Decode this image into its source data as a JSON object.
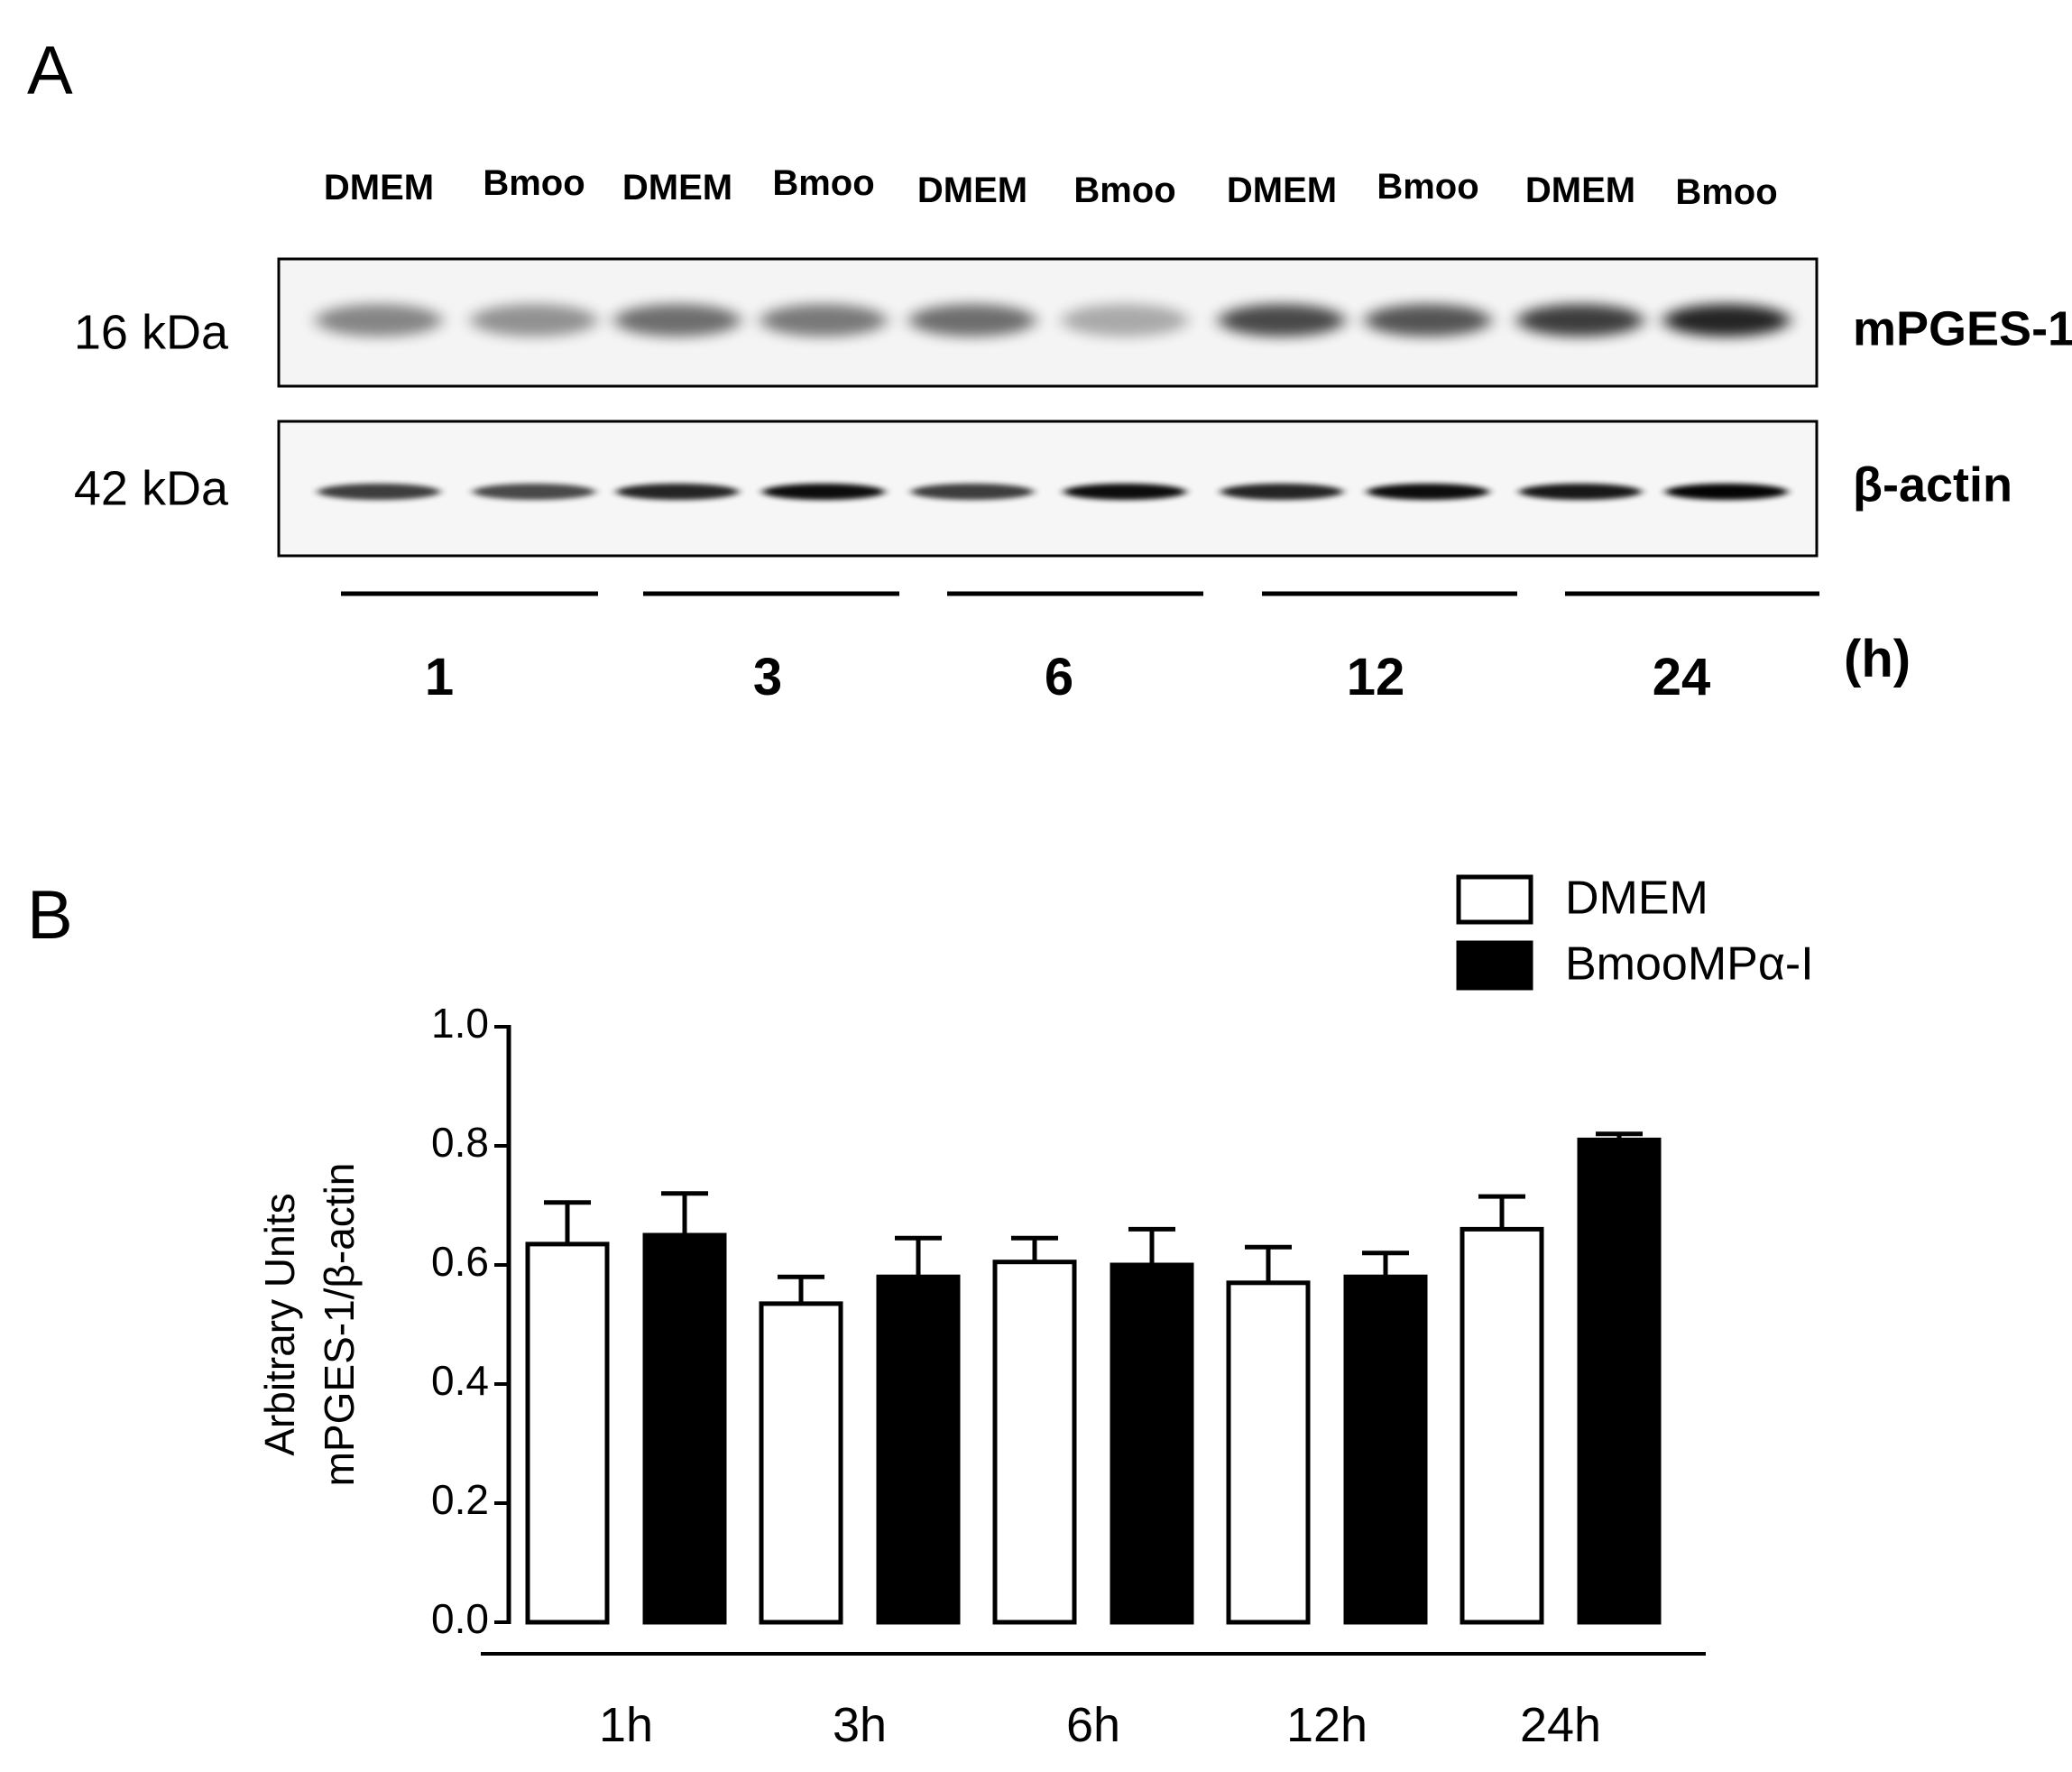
{
  "panel_a": {
    "letter": "A",
    "lane_labels": [
      "DMEM",
      "Bmoo",
      "DMEM",
      "Bmoo",
      "DMEM",
      "Bmoo",
      "DMEM",
      "Bmoo",
      "DMEM",
      "Bmoo"
    ],
    "blots": [
      {
        "marker": "16 kDa",
        "protein": "mPGES-1"
      },
      {
        "marker": "42 kDa",
        "protein": "β-actin"
      }
    ],
    "times": [
      "1",
      "3",
      "6",
      "12",
      "24"
    ],
    "time_unit": "(h)"
  },
  "chart_data": {
    "type": "bar",
    "letter": "B",
    "y_label": [
      "Arbitrary Units",
      "mPGES-1/β-actin"
    ],
    "categories": [
      "1h",
      "3h",
      "6h",
      "12h",
      "24h"
    ],
    "series": [
      {
        "name": "DMEM",
        "color": "#ffffff",
        "values": [
          0.635,
          0.535,
          0.605,
          0.57,
          0.66
        ],
        "errors": [
          0.07,
          0.045,
          0.04,
          0.06,
          0.055
        ]
      },
      {
        "name": "BmooMPα-I",
        "color": "#000000",
        "values": [
          0.65,
          0.58,
          0.6,
          0.58,
          0.81
        ],
        "errors": [
          0.07,
          0.065,
          0.06,
          0.04,
          0.01
        ]
      }
    ],
    "ylim": [
      0,
      1
    ],
    "yticks": [
      {
        "value": 0,
        "label": "0.0"
      },
      0.2,
      0.4,
      0.6,
      0.8,
      {
        "value": 1,
        "label": "1.0"
      }
    ],
    "legend": "top-right"
  }
}
